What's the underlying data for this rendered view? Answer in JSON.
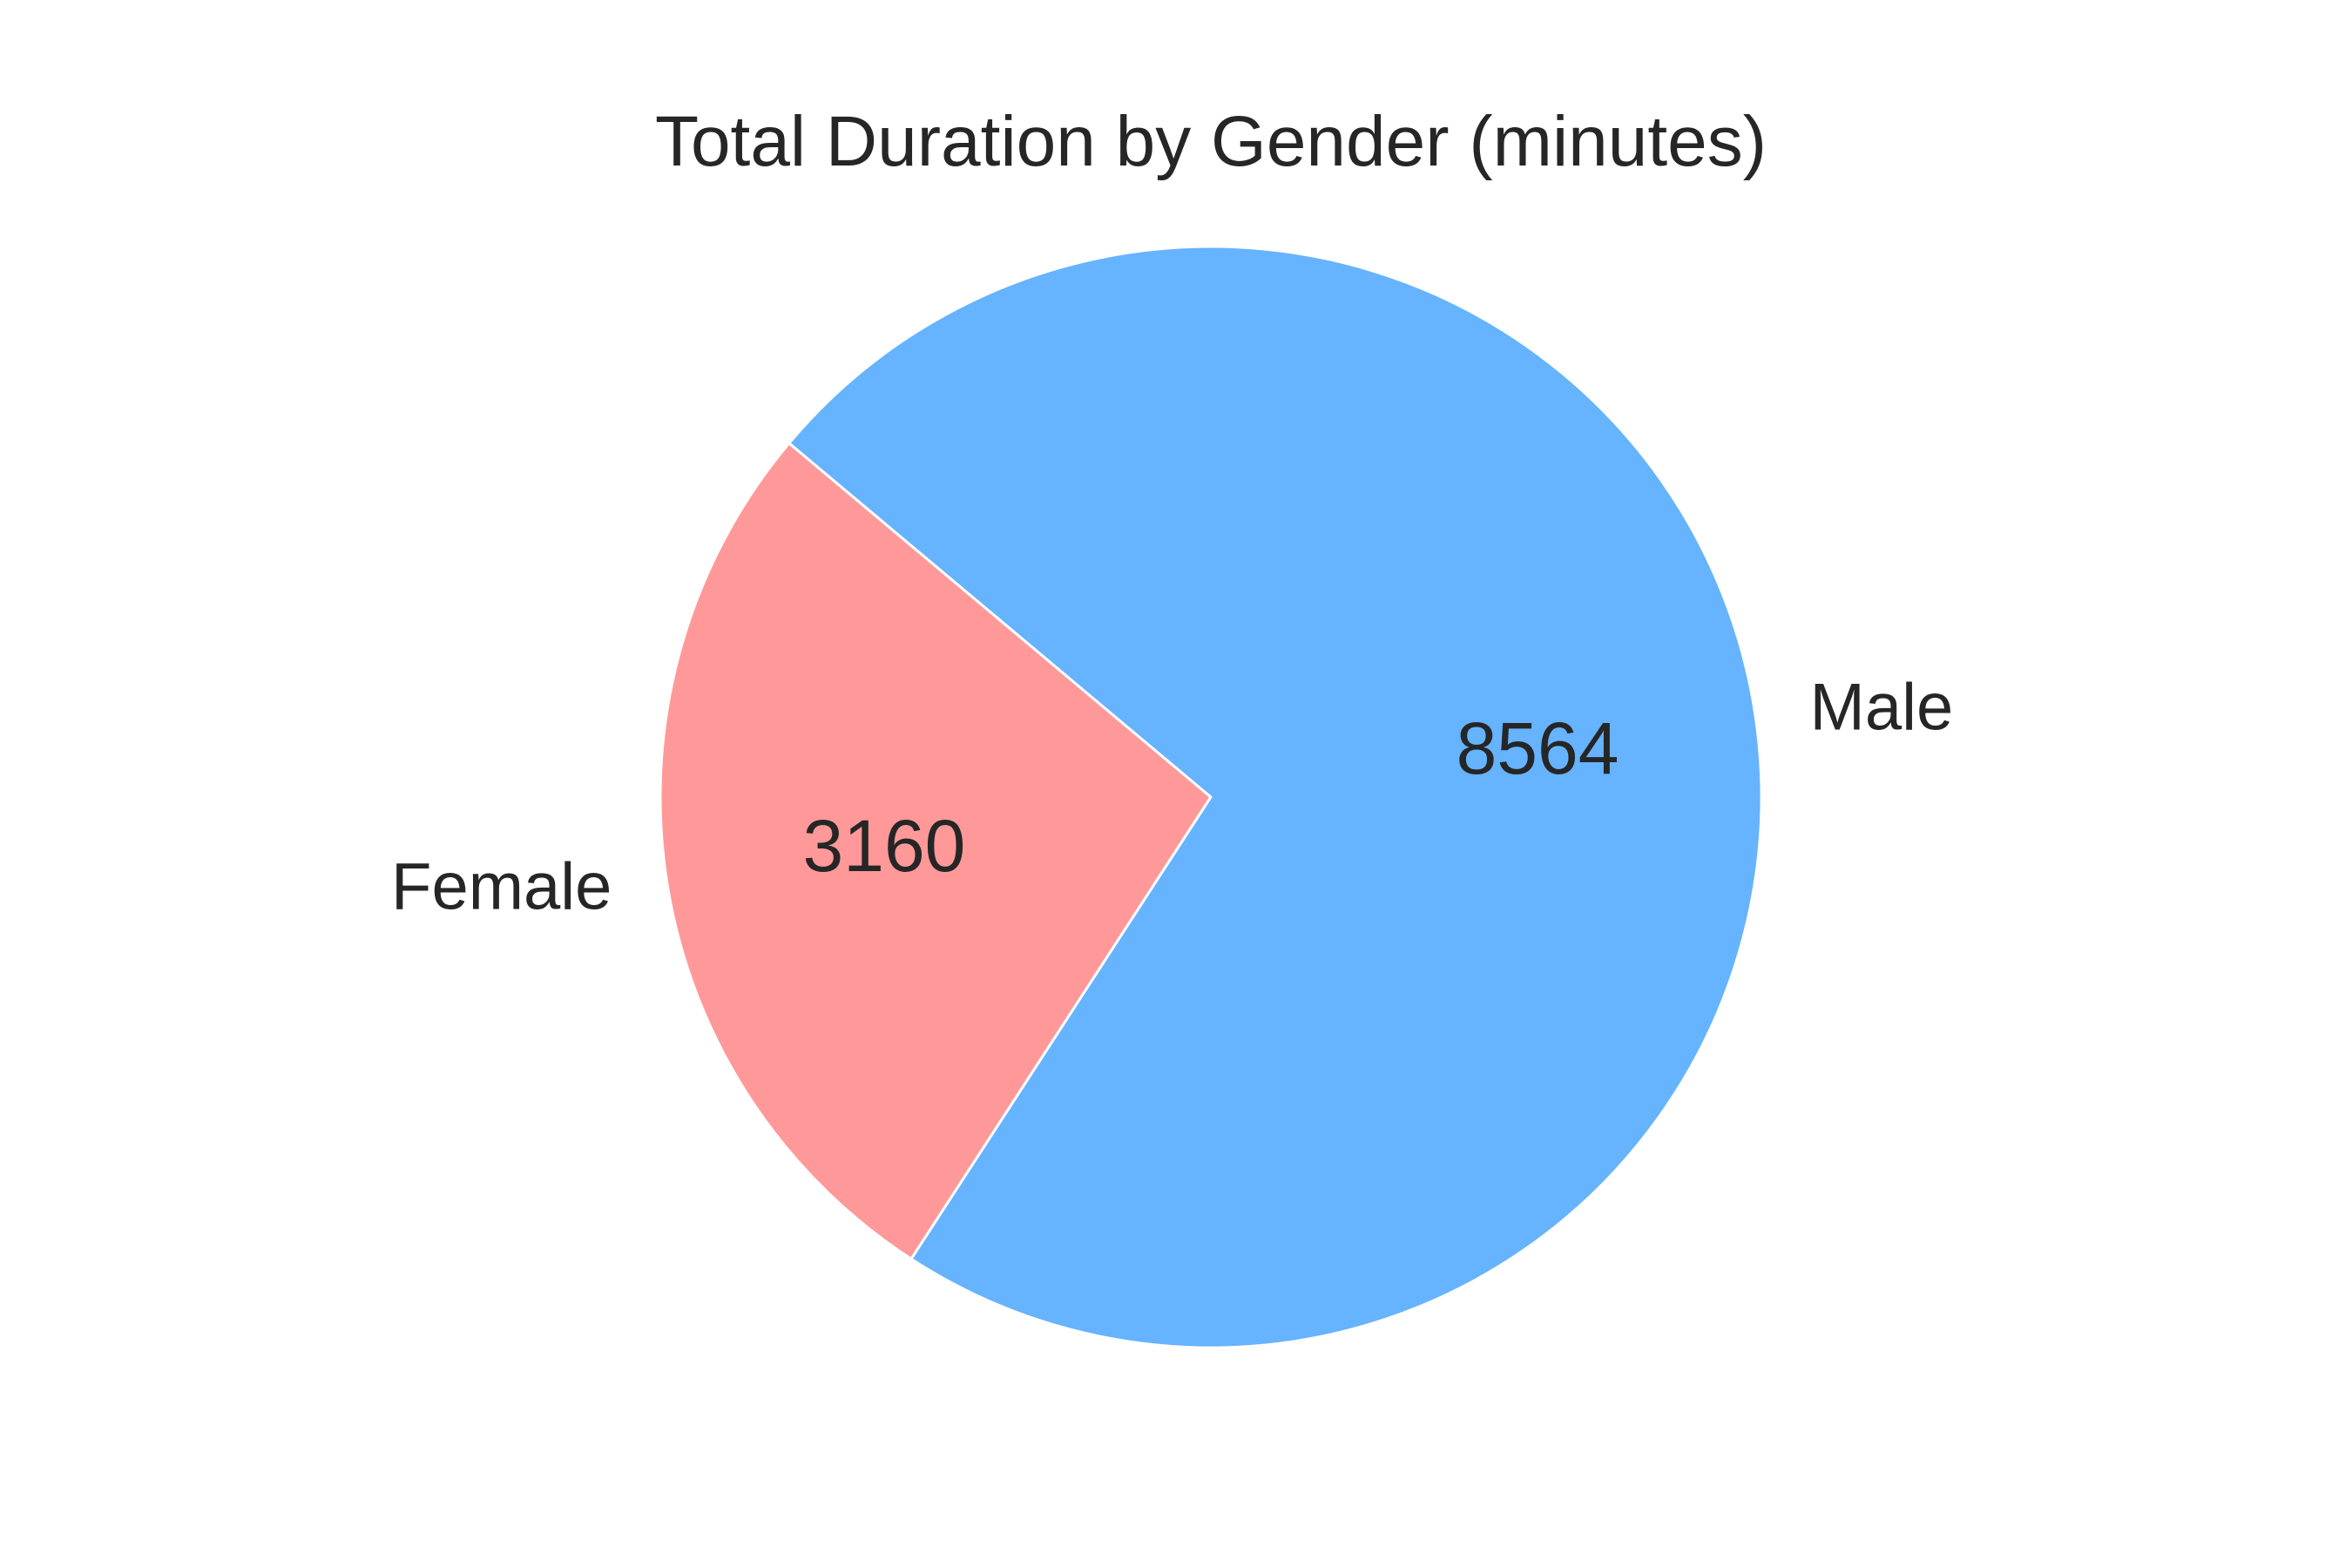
{
  "chart_data": {
    "type": "pie",
    "title": "Total Duration by Gender (minutes)",
    "slices": [
      {
        "label": "Female",
        "value": 3160,
        "value_label": "3160",
        "color": "#ff9999"
      },
      {
        "label": "Male",
        "value": 8564,
        "value_label": "8564",
        "color": "#66b3ff"
      }
    ],
    "start_angle_deg": 140,
    "direction": "counterclockwise",
    "edge_color": "#ffffff",
    "legend": "none"
  }
}
